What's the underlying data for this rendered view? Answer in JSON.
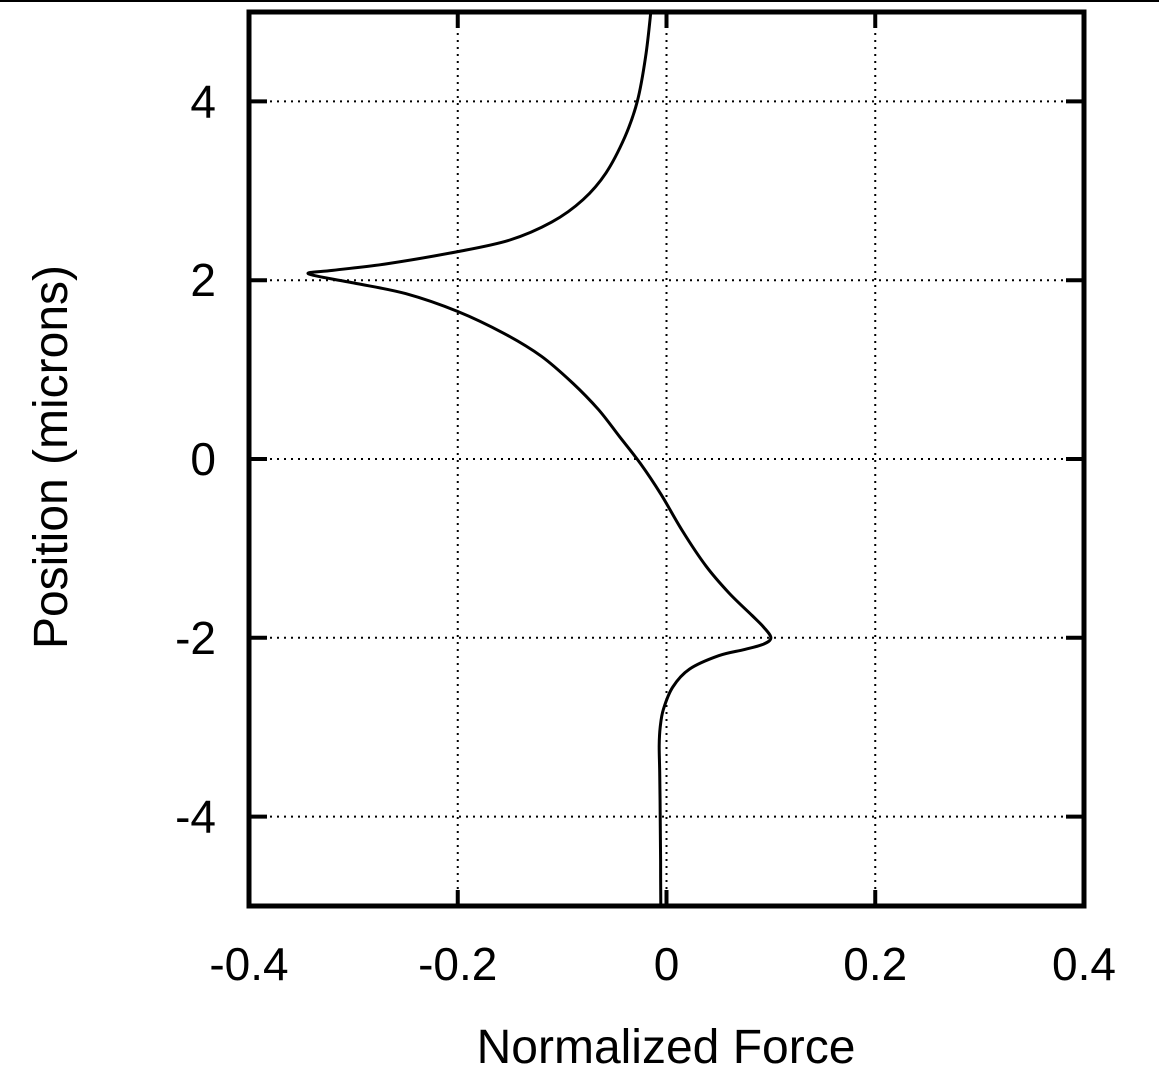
{
  "chart_data": {
    "type": "line",
    "title": "",
    "xlabel": "Normalized Force",
    "ylabel": "Position (microns)",
    "xlim": [
      -0.4,
      0.4
    ],
    "ylim": [
      -5,
      5
    ],
    "x_ticks": [
      -0.4,
      -0.2,
      0,
      0.2,
      0.4
    ],
    "y_ticks": [
      -4,
      -2,
      0,
      2,
      4
    ],
    "x_tick_labels": [
      "-0.4",
      "-0.2",
      "0",
      "0.2",
      "0.4"
    ],
    "y_tick_labels": [
      "-4",
      "-2",
      "0",
      "2",
      "4"
    ],
    "grid": true,
    "grid_style": "dotted",
    "line_color": "#000000",
    "series": [
      {
        "points": [
          {
            "x": -0.0055,
            "y": -5.0
          },
          {
            "x": -0.0057,
            "y": -4.5
          },
          {
            "x": -0.006,
            "y": -4.0
          },
          {
            "x": -0.0065,
            "y": -3.5
          },
          {
            "x": -0.007,
            "y": -3.2
          },
          {
            "x": -0.006,
            "y": -3.0
          },
          {
            "x": -0.003,
            "y": -2.8
          },
          {
            "x": 0.006,
            "y": -2.55
          },
          {
            "x": 0.022,
            "y": -2.35
          },
          {
            "x": 0.05,
            "y": -2.2
          },
          {
            "x": 0.075,
            "y": -2.13
          },
          {
            "x": 0.093,
            "y": -2.07
          },
          {
            "x": 0.1,
            "y": -2.0
          },
          {
            "x": 0.093,
            "y": -1.88
          },
          {
            "x": 0.082,
            "y": -1.75
          },
          {
            "x": 0.06,
            "y": -1.5
          },
          {
            "x": 0.038,
            "y": -1.2
          },
          {
            "x": 0.015,
            "y": -0.8
          },
          {
            "x": -0.005,
            "y": -0.4
          },
          {
            "x": -0.025,
            "y": -0.05
          },
          {
            "x": -0.045,
            "y": 0.25
          },
          {
            "x": -0.065,
            "y": 0.55
          },
          {
            "x": -0.09,
            "y": 0.85
          },
          {
            "x": -0.12,
            "y": 1.15
          },
          {
            "x": -0.155,
            "y": 1.4
          },
          {
            "x": -0.2,
            "y": 1.65
          },
          {
            "x": -0.25,
            "y": 1.85
          },
          {
            "x": -0.3,
            "y": 1.97
          },
          {
            "x": -0.343,
            "y": 2.07
          },
          {
            "x": -0.32,
            "y": 2.11
          },
          {
            "x": -0.27,
            "y": 2.18
          },
          {
            "x": -0.2,
            "y": 2.32
          },
          {
            "x": -0.15,
            "y": 2.45
          },
          {
            "x": -0.11,
            "y": 2.65
          },
          {
            "x": -0.08,
            "y": 2.9
          },
          {
            "x": -0.058,
            "y": 3.2
          },
          {
            "x": -0.04,
            "y": 3.6
          },
          {
            "x": -0.028,
            "y": 4.0
          },
          {
            "x": -0.02,
            "y": 4.5
          },
          {
            "x": -0.015,
            "y": 5.0
          }
        ]
      }
    ]
  }
}
